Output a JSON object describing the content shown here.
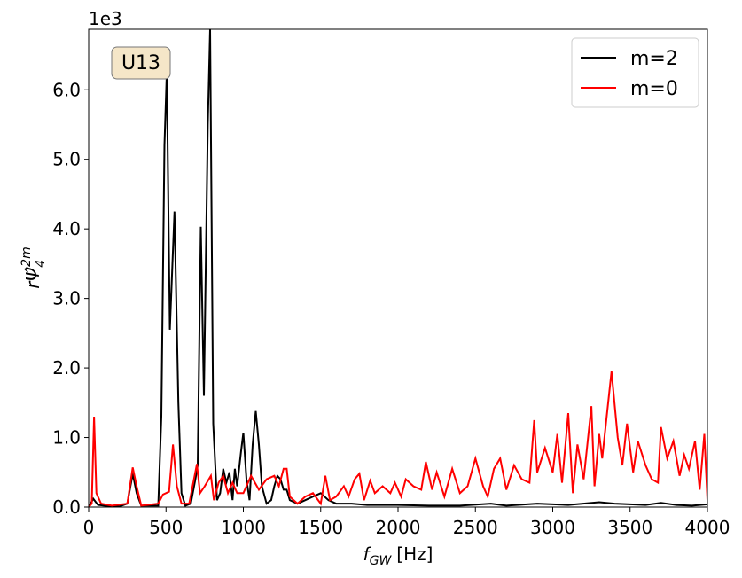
{
  "chart_data": {
    "type": "line",
    "annotation": "U13",
    "y_offset_label": "1e3",
    "xlabel": {
      "main": "f",
      "sub": "GW",
      "rest": "[Hz]"
    },
    "ylabel": {
      "main": "rΨ̂",
      "sub": "4",
      "sup": "2m"
    },
    "xlim": [
      0,
      4000
    ],
    "xticks": [
      0,
      500,
      1000,
      1500,
      2000,
      2500,
      3000,
      3500,
      4000
    ],
    "ylim": [
      0,
      6.87
    ],
    "yticks": [
      {
        "value": 0,
        "label": "0.0"
      },
      {
        "value": 1,
        "label": "1.0"
      },
      {
        "value": 2,
        "label": "2.0"
      },
      {
        "value": 3,
        "label": "3.0"
      },
      {
        "value": 4,
        "label": "4.0"
      },
      {
        "value": 5,
        "label": "5.0"
      },
      {
        "value": 6,
        "label": "6.0"
      }
    ],
    "legend": "upper right",
    "series": [
      {
        "name": "m=2",
        "color": "#000000",
        "x": [
          0,
          30,
          60,
          100,
          200,
          250,
          285,
          310,
          340,
          450,
          470,
          490,
          505,
          525,
          555,
          580,
          600,
          625,
          660,
          690,
          705,
          725,
          745,
          770,
          785,
          805,
          830,
          850,
          870,
          890,
          910,
          930,
          945,
          960,
          985,
          1000,
          1020,
          1040,
          1060,
          1080,
          1100,
          1120,
          1150,
          1180,
          1200,
          1220,
          1240,
          1260,
          1280,
          1300,
          1350,
          1400,
          1450,
          1500,
          1550,
          1600,
          1700,
          1800,
          2000,
          2200,
          2400,
          2600,
          2700,
          2900,
          3100,
          3300,
          3400,
          3500,
          3600,
          3700,
          3800,
          3900,
          4000
        ],
        "values": [
          0.0,
          0.12,
          0.03,
          0.02,
          0.01,
          0.05,
          0.48,
          0.2,
          0.02,
          0.02,
          1.3,
          5.2,
          6.25,
          2.55,
          4.25,
          1.5,
          0.2,
          0.02,
          0.05,
          0.4,
          0.6,
          4.03,
          1.6,
          5.5,
          6.87,
          1.2,
          0.1,
          0.2,
          0.55,
          0.35,
          0.5,
          0.1,
          0.55,
          0.3,
          0.8,
          1.07,
          0.4,
          0.1,
          0.9,
          1.38,
          0.9,
          0.3,
          0.05,
          0.1,
          0.3,
          0.45,
          0.4,
          0.25,
          0.25,
          0.1,
          0.05,
          0.1,
          0.15,
          0.2,
          0.1,
          0.05,
          0.05,
          0.03,
          0.03,
          0.02,
          0.02,
          0.05,
          0.02,
          0.05,
          0.03,
          0.07,
          0.05,
          0.04,
          0.03,
          0.06,
          0.03,
          0.02,
          0.04
        ]
      },
      {
        "name": "m=0",
        "color": "#ff0000",
        "x": [
          0,
          20,
          35,
          50,
          80,
          150,
          250,
          285,
          310,
          340,
          450,
          480,
          520,
          545,
          570,
          600,
          650,
          700,
          720,
          750,
          790,
          810,
          840,
          870,
          900,
          930,
          960,
          1000,
          1050,
          1100,
          1150,
          1200,
          1230,
          1260,
          1280,
          1300,
          1350,
          1400,
          1450,
          1500,
          1530,
          1560,
          1600,
          1650,
          1680,
          1720,
          1750,
          1780,
          1820,
          1850,
          1900,
          1950,
          1980,
          2020,
          2050,
          2100,
          2150,
          2180,
          2220,
          2250,
          2300,
          2350,
          2400,
          2450,
          2500,
          2550,
          2580,
          2620,
          2660,
          2700,
          2750,
          2800,
          2850,
          2880,
          2900,
          2950,
          3000,
          3030,
          3060,
          3100,
          3130,
          3160,
          3200,
          3250,
          3270,
          3300,
          3320,
          3380,
          3420,
          3450,
          3480,
          3520,
          3550,
          3600,
          3640,
          3680,
          3700,
          3740,
          3780,
          3820,
          3850,
          3880,
          3920,
          3950,
          3980,
          4000
        ],
        "values": [
          0.0,
          0.05,
          1.3,
          0.2,
          0.05,
          0.02,
          0.05,
          0.57,
          0.3,
          0.02,
          0.05,
          0.18,
          0.22,
          0.9,
          0.3,
          0.05,
          0.05,
          0.62,
          0.2,
          0.3,
          0.45,
          0.1,
          0.35,
          0.45,
          0.2,
          0.35,
          0.2,
          0.2,
          0.45,
          0.25,
          0.4,
          0.45,
          0.3,
          0.55,
          0.55,
          0.15,
          0.05,
          0.15,
          0.2,
          0.05,
          0.45,
          0.1,
          0.15,
          0.3,
          0.15,
          0.4,
          0.48,
          0.1,
          0.38,
          0.2,
          0.3,
          0.2,
          0.35,
          0.15,
          0.4,
          0.3,
          0.25,
          0.65,
          0.25,
          0.5,
          0.15,
          0.55,
          0.2,
          0.3,
          0.7,
          0.3,
          0.15,
          0.55,
          0.7,
          0.25,
          0.6,
          0.4,
          0.35,
          1.25,
          0.5,
          0.85,
          0.5,
          1.05,
          0.35,
          1.35,
          0.2,
          0.9,
          0.4,
          1.45,
          0.3,
          1.05,
          0.7,
          1.95,
          1.0,
          0.6,
          1.2,
          0.5,
          0.95,
          0.6,
          0.4,
          0.35,
          1.15,
          0.7,
          0.95,
          0.45,
          0.75,
          0.55,
          0.95,
          0.25,
          1.05,
          0.1
        ]
      }
    ]
  }
}
